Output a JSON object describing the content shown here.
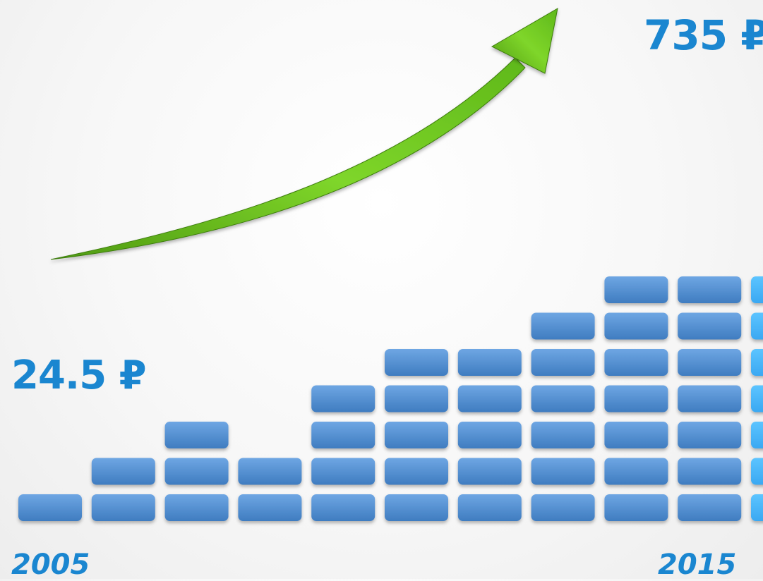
{
  "chart_data": {
    "type": "bar",
    "categories": [
      "2005",
      "",
      "",
      "",
      "",
      "",
      "",
      "",
      "",
      "",
      "2015"
    ],
    "values": [
      1,
      2,
      3,
      2,
      4,
      5,
      5,
      6,
      7,
      7,
      7
    ],
    "annotations": {
      "start_value": "24.5 ₽",
      "end_value": "735 ₽"
    },
    "colors": {
      "bar": "#5e9ad9",
      "bar_dark": "#3f7cc0",
      "bar_highlight": "#4db8ff",
      "arrow": "#6fc81e",
      "label": "#1a86d0"
    },
    "highlight_index": 10,
    "grid": false,
    "legend": "none"
  }
}
